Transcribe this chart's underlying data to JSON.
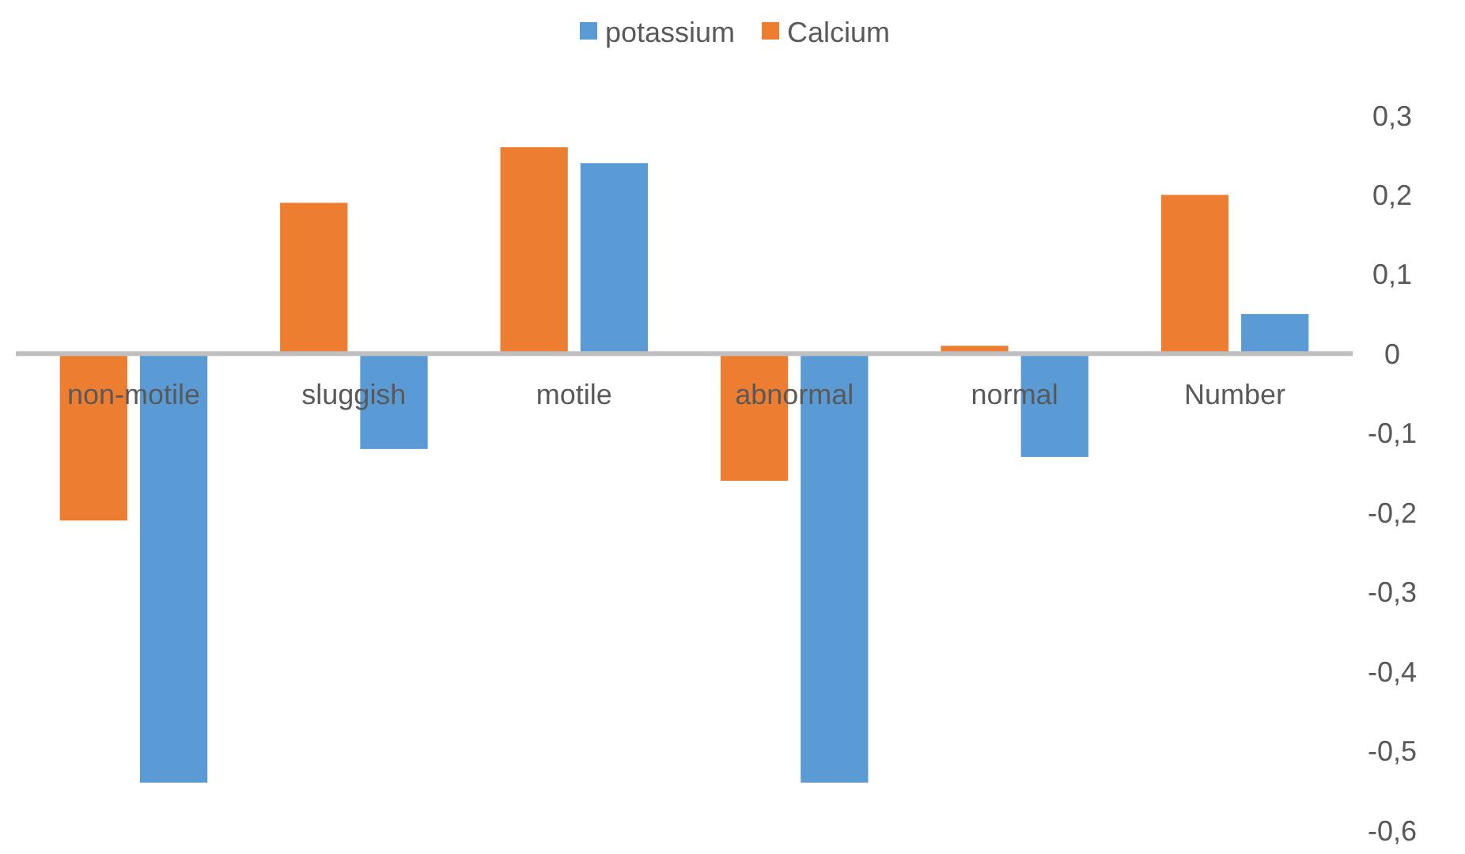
{
  "chart_data": {
    "type": "bar",
    "categories": [
      "non-motile",
      "sluggish",
      "motile",
      "abnormal",
      "normal",
      "Number"
    ],
    "series": [
      {
        "name": "potassium",
        "color": "#5b9bd5",
        "values": [
          -0.54,
          -0.12,
          0.24,
          -0.54,
          -0.13,
          0.05
        ]
      },
      {
        "name": "Calcium",
        "color": "#ed7d31",
        "values": [
          -0.21,
          0.19,
          0.26,
          -0.16,
          0.01,
          0.2
        ]
      }
    ],
    "ylim": [
      -0.6,
      0.3
    ],
    "yticks": [
      {
        "value": -0.6,
        "label": "-0,6"
      },
      {
        "value": -0.5,
        "label": "-0,5"
      },
      {
        "value": -0.4,
        "label": "-0,4"
      },
      {
        "value": -0.3,
        "label": "-0,3"
      },
      {
        "value": -0.2,
        "label": "-0,2"
      },
      {
        "value": -0.1,
        "label": "-0,1"
      },
      {
        "value": 0,
        "label": "0"
      },
      {
        "value": 0.1,
        "label": "0,1"
      },
      {
        "value": 0.2,
        "label": "0,2"
      },
      {
        "value": 0.3,
        "label": "0,3"
      }
    ],
    "grid": false,
    "legend": "top"
  }
}
